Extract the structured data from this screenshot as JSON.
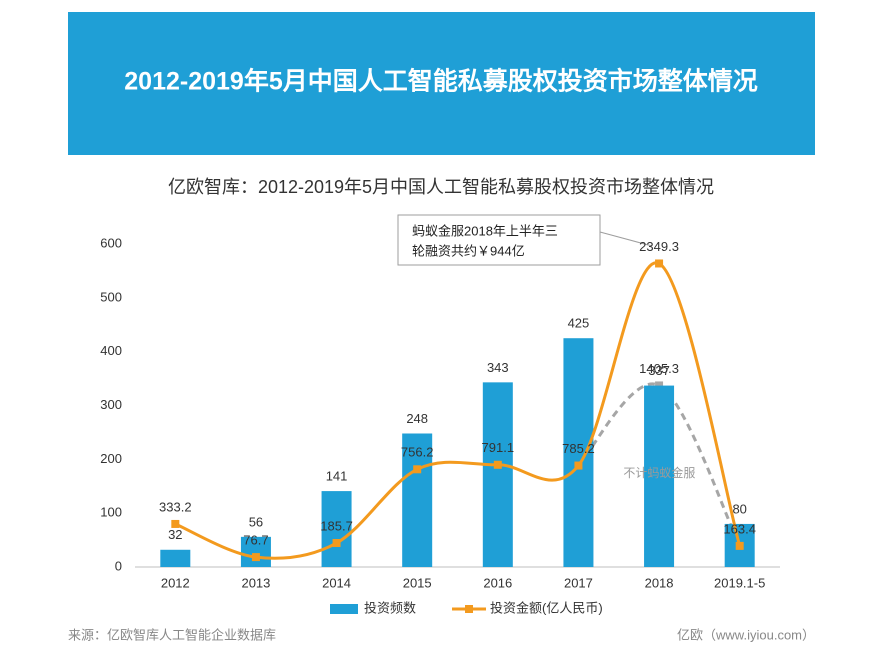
{
  "header": {
    "title": "2012-2019年5月中国人工智能私募股权投资市场整体情况"
  },
  "chart_data": {
    "type": "bar",
    "title": "亿欧智库：2012-2019年5月中国人工智能私募股权投资市场整体情况",
    "categories": [
      "2012",
      "2013",
      "2014",
      "2015",
      "2016",
      "2017",
      "2018",
      "2019.1-5"
    ],
    "series": [
      {
        "name": "投资频数",
        "type": "bar",
        "color": "#1f9fd6",
        "values": [
          32,
          56,
          141,
          248,
          343,
          425,
          337,
          80
        ]
      },
      {
        "name": "投资金额(亿人民币)",
        "type": "line",
        "axis": "y2",
        "color": "#f39a1e",
        "values": [
          333.2,
          76.7,
          185.7,
          756.2,
          791.1,
          785.2,
          2349.3,
          163.4
        ]
      },
      {
        "name": "不计蚂蚁金服",
        "type": "line",
        "axis": "y2",
        "dashed": true,
        "color": "#a6a6a6",
        "values": [
          null,
          null,
          null,
          null,
          null,
          785.2,
          1405.3,
          163.4
        ]
      }
    ],
    "ylim": [
      0,
      600
    ],
    "yticks": [
      0,
      100,
      200,
      300,
      400,
      500,
      600
    ],
    "y2lim": [
      0,
      2500
    ],
    "annotation": [
      "蚂蚁金服2018年上半年三",
      "轮融资共约￥944亿"
    ],
    "legend": "bottom"
  },
  "footer": {
    "source": "来源：亿欧智库人工智能企业数据库",
    "brand": "亿欧（www.iyiou.com）"
  }
}
